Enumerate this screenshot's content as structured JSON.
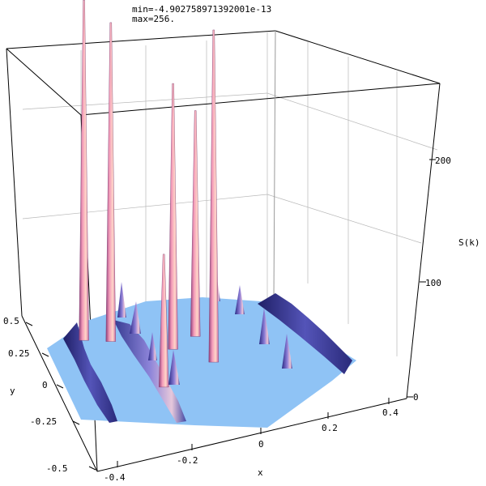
{
  "header": {
    "min_line": "min=-4.902758971392001e-13",
    "max_line": "max=256."
  },
  "chart_data": {
    "type": "surface3d",
    "title": "",
    "xlabel": "x",
    "ylabel": "y",
    "zlabel": "S(k)",
    "x_ticks": [
      "-0.4",
      "-0.2",
      "0",
      "0.2",
      "0.4"
    ],
    "x_tick_values": [
      -0.4,
      -0.2,
      0,
      0.2,
      0.4
    ],
    "y_ticks": [
      "-0.5",
      "-0.25",
      "0",
      "0.25",
      "0.5"
    ],
    "y_tick_values": [
      -0.5,
      -0.25,
      0,
      0.25,
      0.5
    ],
    "z_ticks": [
      "0",
      "100",
      "200"
    ],
    "z_tick_values": [
      0,
      100,
      200
    ],
    "xlim": [
      -0.5,
      0.5
    ],
    "ylim": [
      -0.5,
      0.5
    ],
    "zlim": [
      0,
      256
    ],
    "z_min": -4.902758971392001e-13,
    "z_max": 256,
    "grid": true,
    "peaks": [
      {
        "x": -0.18,
        "y": 0.3,
        "z": 256
      },
      {
        "x": -0.12,
        "y": 0.26,
        "z": 240
      },
      {
        "x": 0.0,
        "y": 0.14,
        "z": 200
      },
      {
        "x": 0.05,
        "y": 0.02,
        "z": 250
      },
      {
        "x": 0.1,
        "y": 0.18,
        "z": 170
      },
      {
        "x": -0.16,
        "y": -0.05,
        "z": 100
      }
    ],
    "colors": {
      "surface_floor": "#8fc3f5",
      "peak_light": "#f6b3c6",
      "peak_dark": "#3d3f9e",
      "ridge_dark": "#22226b"
    }
  }
}
